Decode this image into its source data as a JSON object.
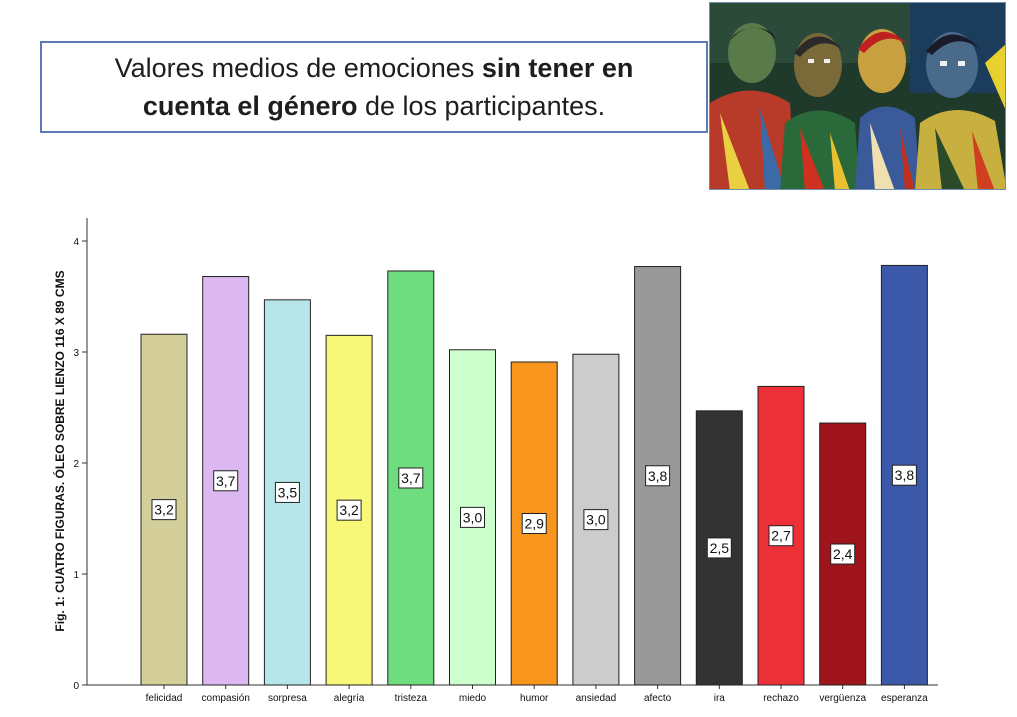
{
  "header": {
    "title_part1": "Valores medios de emociones ",
    "title_bold1": "sin tener en",
    "title_bold2": "cuenta el género",
    "title_part2": " de los participantes."
  },
  "painting": {
    "icon": "painting-four-figures-image"
  },
  "chart_data": {
    "type": "bar",
    "ylabel": "Fig. 1: CUATRO FIGURAS. ÓLEO SOBRE LIENZO 116 X 89 CMS",
    "xlabel": "",
    "ylim": [
      0,
      4
    ],
    "yticks": [
      "0",
      "1",
      "2",
      "3",
      "4"
    ],
    "grid": false,
    "categories": [
      "felicidad",
      "compasión",
      "sorpresa",
      "alegría",
      "tristeza",
      "miedo",
      "humor",
      "ansiedad",
      "afecto",
      "ira",
      "rechazo",
      "vergüenza",
      "esperanza"
    ],
    "values": [
      3.16,
      3.68,
      3.47,
      3.15,
      3.73,
      3.02,
      2.91,
      2.98,
      3.77,
      2.47,
      2.69,
      2.36,
      3.78
    ],
    "value_labels": [
      "3,2",
      "3,7",
      "3,5",
      "3,2",
      "3,7",
      "3,0",
      "2,9",
      "3,0",
      "3,8",
      "2,5",
      "2,7",
      "2,4",
      "3,8"
    ],
    "colors": [
      "#d4cf9a",
      "#dcb8f0",
      "#b8e6e8",
      "#f8f878",
      "#70dc80",
      "#ccffcc",
      "#f8961e",
      "#cccccc",
      "#999999",
      "#333333",
      "#ee3038",
      "#a0141c",
      "#3c58a8"
    ]
  }
}
